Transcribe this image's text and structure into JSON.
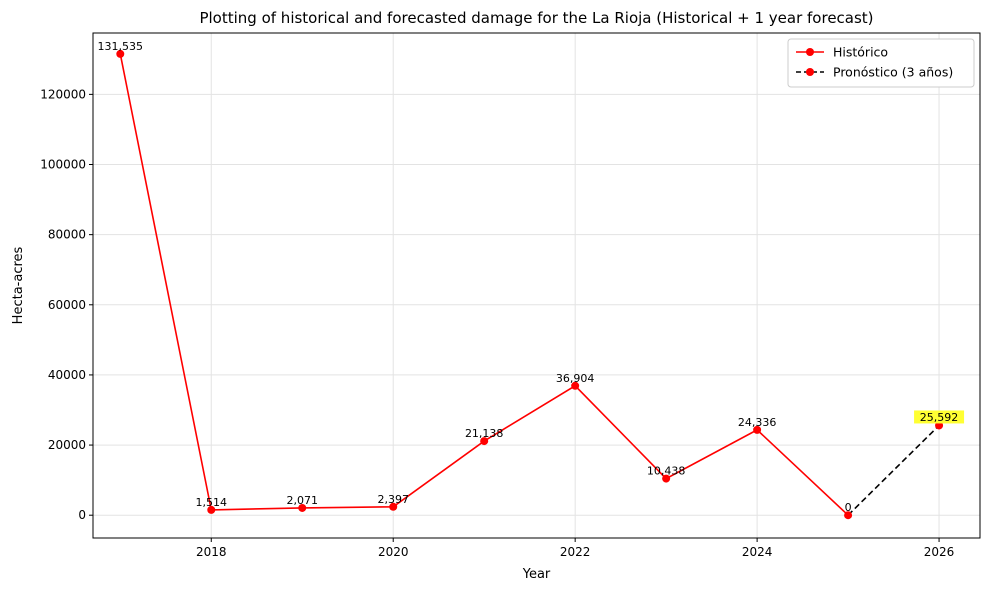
{
  "chart_data": {
    "type": "line",
    "title": "Plotting of historical and forecasted damage for the La Rioja (Historical + 1 year forecast)",
    "xlabel": "Year",
    "ylabel": "Hecta-acres",
    "xlim": [
      2016.7,
      2026.45
    ],
    "ylim": [
      -6500,
      137500
    ],
    "xticks": [
      2018,
      2020,
      2022,
      2024,
      2026
    ],
    "yticks": [
      0,
      20000,
      40000,
      60000,
      80000,
      100000,
      120000
    ],
    "grid": true,
    "legend_position": "top-right",
    "series": [
      {
        "name": "Histórico",
        "style": "solid",
        "color": "#ff0000",
        "x": [
          2017,
          2018,
          2019,
          2020,
          2021,
          2022,
          2023,
          2024,
          2025
        ],
        "values": [
          131535,
          1514,
          2071,
          2397,
          21138,
          36904,
          10438,
          24336,
          0
        ],
        "labels": [
          "131,535",
          "1,514",
          "2,071",
          "2,397",
          "21,138",
          "36,904",
          "10,438",
          "24,336",
          "0"
        ]
      },
      {
        "name": "Pronóstico (3 años)",
        "style": "dashed",
        "color": "#000000",
        "marker_color": "#ff0000",
        "x": [
          2025,
          2026
        ],
        "values": [
          0,
          25592
        ],
        "labels": [
          "25,592"
        ],
        "label_highlight": "#ffff33"
      }
    ]
  }
}
